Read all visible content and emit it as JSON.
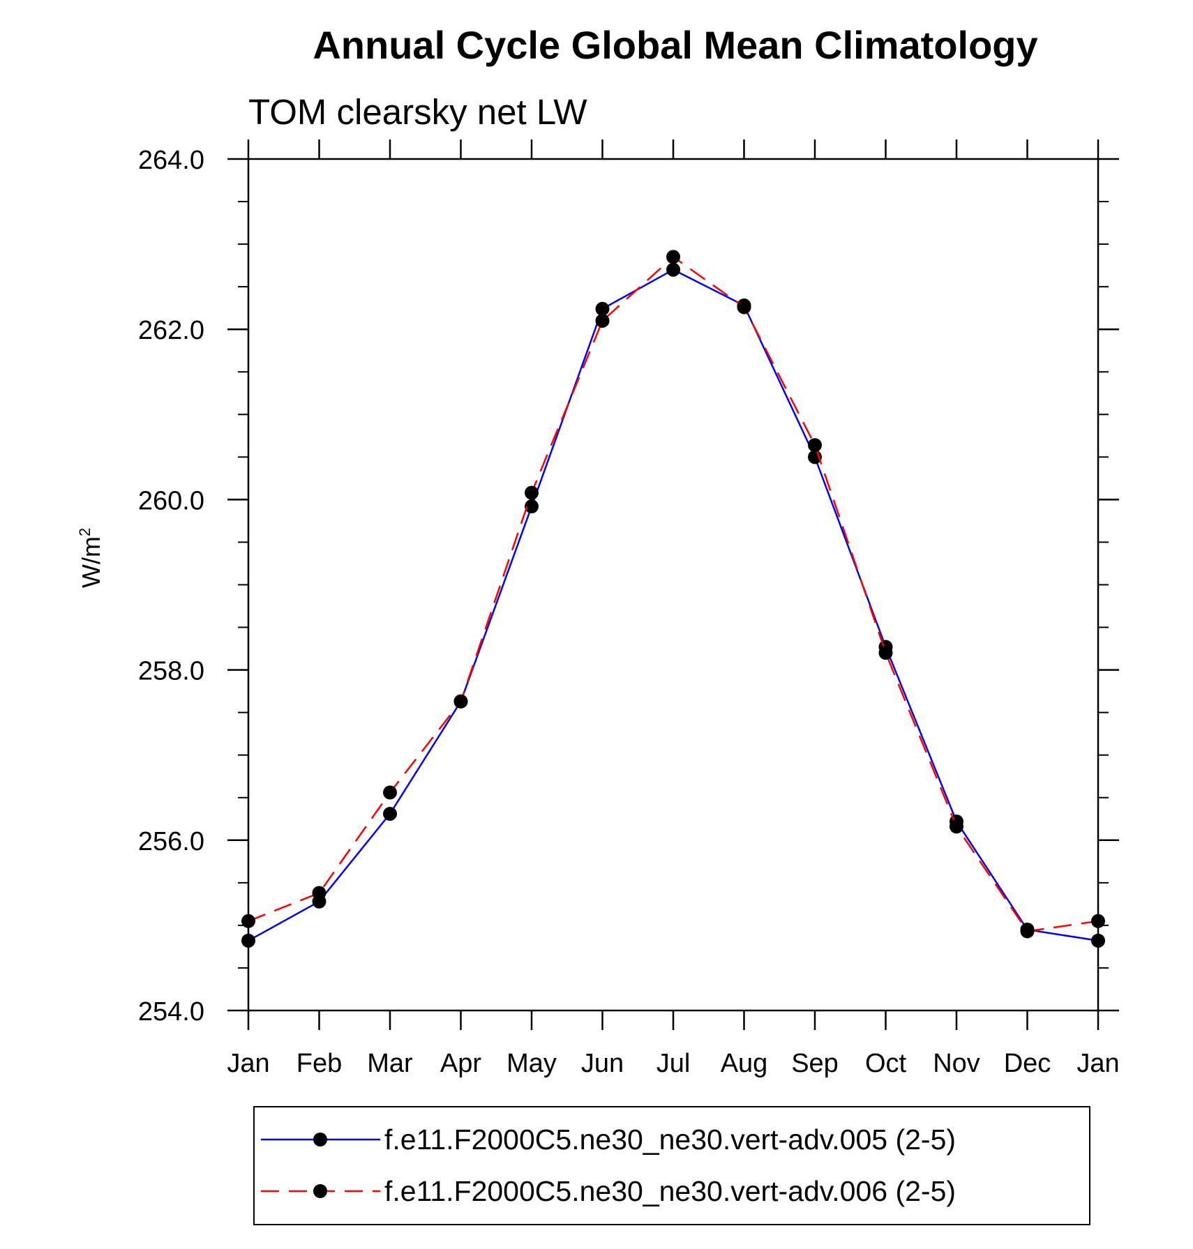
{
  "chart_data": {
    "type": "line",
    "title": "Annual Cycle Global Mean Climatology",
    "subtitle": "TOM clearsky net LW",
    "ylabel": "W/m",
    "ylabel_superscript": "2",
    "xlabel": "",
    "categories": [
      "Jan",
      "Feb",
      "Mar",
      "Apr",
      "May",
      "Jun",
      "Jul",
      "Aug",
      "Sep",
      "Oct",
      "Nov",
      "Dec",
      "Jan"
    ],
    "ylim": [
      254.0,
      264.0
    ],
    "yticks": [
      "254.0",
      "256.0",
      "258.0",
      "260.0",
      "262.0",
      "264.0"
    ],
    "ytick_values": [
      254,
      256,
      258,
      260,
      262,
      264
    ],
    "y_minor_step": 0.5,
    "grid": false,
    "legend_position": "bottom",
    "series": [
      {
        "name": "f.e11.F2000C5.ne30_ne30.vert-adv.005 (2-5)",
        "color": "#0000ff",
        "line_style": "solid",
        "marker": "circle",
        "values": [
          254.82,
          255.28,
          256.31,
          257.63,
          259.92,
          262.24,
          262.7,
          262.28,
          260.5,
          258.27,
          256.22,
          254.95,
          254.82
        ]
      },
      {
        "name": "f.e11.F2000C5.ne30_ne30.vert-adv.006 (2-5)",
        "color": "#ff0000",
        "line_style": "dashed",
        "marker": "circle",
        "values": [
          255.05,
          255.38,
          256.56,
          257.63,
          260.08,
          262.1,
          262.85,
          262.26,
          260.64,
          258.2,
          256.16,
          254.93,
          255.05
        ]
      }
    ]
  }
}
